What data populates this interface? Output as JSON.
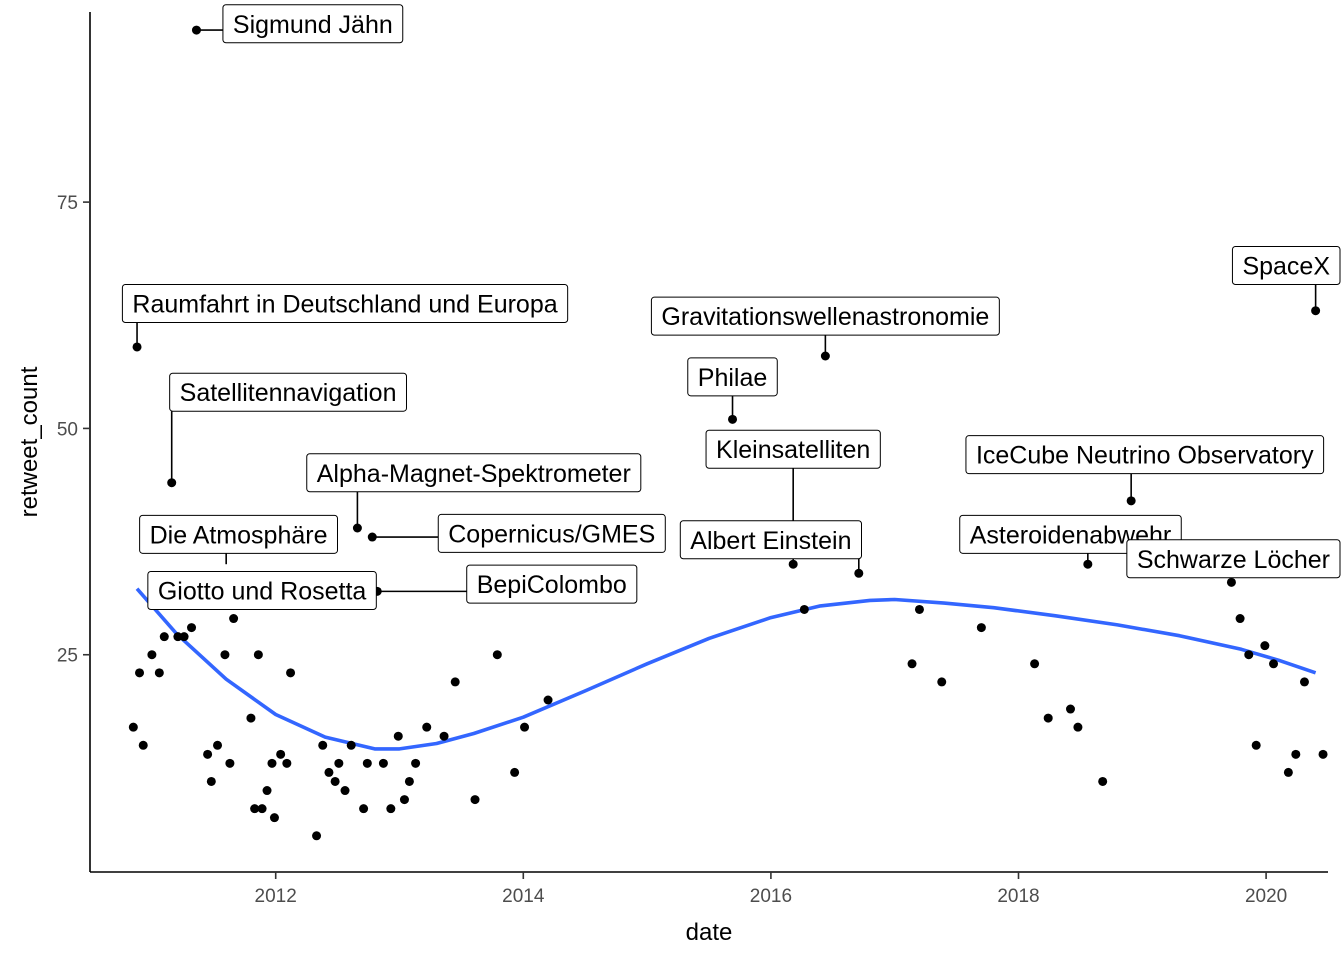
{
  "chart_data": {
    "type": "scatter",
    "xlabel": "date",
    "ylabel": "retweet_count",
    "xlim": [
      2010.5,
      2020.5
    ],
    "ylim": [
      1,
      96
    ],
    "x_ticks": [
      2012,
      2014,
      2016,
      2018,
      2020
    ],
    "y_ticks": [
      25,
      50,
      75
    ],
    "grid": false,
    "point_color": "#000000",
    "smooth_color": "#3366ff",
    "points": [
      {
        "x": 2010.85,
        "y": 17
      },
      {
        "x": 2010.88,
        "y": 59
      },
      {
        "x": 2010.9,
        "y": 23
      },
      {
        "x": 2010.93,
        "y": 15
      },
      {
        "x": 2011.0,
        "y": 25
      },
      {
        "x": 2011.06,
        "y": 23
      },
      {
        "x": 2011.1,
        "y": 27
      },
      {
        "x": 2011.16,
        "y": 44
      },
      {
        "x": 2011.21,
        "y": 27
      },
      {
        "x": 2011.26,
        "y": 27
      },
      {
        "x": 2011.32,
        "y": 28
      },
      {
        "x": 2011.36,
        "y": 94
      },
      {
        "x": 2011.39,
        "y": 32
      },
      {
        "x": 2011.45,
        "y": 14
      },
      {
        "x": 2011.48,
        "y": 11
      },
      {
        "x": 2011.53,
        "y": 15
      },
      {
        "x": 2011.59,
        "y": 25
      },
      {
        "x": 2011.63,
        "y": 13
      },
      {
        "x": 2011.66,
        "y": 29
      },
      {
        "x": 2011.71,
        "y": 31
      },
      {
        "x": 2011.8,
        "y": 18
      },
      {
        "x": 2011.83,
        "y": 8
      },
      {
        "x": 2011.86,
        "y": 25
      },
      {
        "x": 2011.89,
        "y": 8
      },
      {
        "x": 2011.93,
        "y": 10
      },
      {
        "x": 2011.97,
        "y": 13
      },
      {
        "x": 2011.99,
        "y": 7
      },
      {
        "x": 2012.04,
        "y": 14
      },
      {
        "x": 2012.09,
        "y": 13
      },
      {
        "x": 2012.12,
        "y": 23
      },
      {
        "x": 2012.33,
        "y": 5
      },
      {
        "x": 2012.38,
        "y": 15
      },
      {
        "x": 2012.43,
        "y": 12
      },
      {
        "x": 2012.48,
        "y": 11
      },
      {
        "x": 2012.51,
        "y": 13
      },
      {
        "x": 2012.56,
        "y": 10
      },
      {
        "x": 2012.61,
        "y": 15
      },
      {
        "x": 2012.66,
        "y": 39
      },
      {
        "x": 2012.71,
        "y": 8
      },
      {
        "x": 2012.74,
        "y": 13
      },
      {
        "x": 2012.78,
        "y": 38
      },
      {
        "x": 2012.82,
        "y": 32
      },
      {
        "x": 2012.87,
        "y": 13
      },
      {
        "x": 2012.93,
        "y": 8
      },
      {
        "x": 2012.99,
        "y": 16
      },
      {
        "x": 2013.04,
        "y": 9
      },
      {
        "x": 2013.08,
        "y": 11
      },
      {
        "x": 2013.13,
        "y": 13
      },
      {
        "x": 2013.22,
        "y": 17
      },
      {
        "x": 2013.36,
        "y": 16
      },
      {
        "x": 2013.45,
        "y": 22
      },
      {
        "x": 2013.61,
        "y": 9
      },
      {
        "x": 2013.79,
        "y": 25
      },
      {
        "x": 2013.93,
        "y": 12
      },
      {
        "x": 2014.01,
        "y": 17
      },
      {
        "x": 2014.2,
        "y": 20
      },
      {
        "x": 2015.69,
        "y": 51
      },
      {
        "x": 2016.18,
        "y": 35
      },
      {
        "x": 2016.27,
        "y": 30
      },
      {
        "x": 2016.44,
        "y": 58
      },
      {
        "x": 2016.71,
        "y": 34
      },
      {
        "x": 2017.14,
        "y": 24
      },
      {
        "x": 2017.2,
        "y": 30
      },
      {
        "x": 2017.38,
        "y": 22
      },
      {
        "x": 2017.7,
        "y": 28
      },
      {
        "x": 2018.13,
        "y": 24
      },
      {
        "x": 2018.24,
        "y": 18
      },
      {
        "x": 2018.42,
        "y": 19
      },
      {
        "x": 2018.48,
        "y": 17
      },
      {
        "x": 2018.56,
        "y": 35
      },
      {
        "x": 2018.68,
        "y": 11
      },
      {
        "x": 2018.91,
        "y": 42
      },
      {
        "x": 2019.72,
        "y": 33
      },
      {
        "x": 2019.79,
        "y": 29
      },
      {
        "x": 2019.86,
        "y": 25
      },
      {
        "x": 2019.92,
        "y": 15
      },
      {
        "x": 2019.99,
        "y": 26
      },
      {
        "x": 2020.06,
        "y": 24
      },
      {
        "x": 2020.18,
        "y": 12
      },
      {
        "x": 2020.24,
        "y": 14
      },
      {
        "x": 2020.31,
        "y": 22
      },
      {
        "x": 2020.4,
        "y": 63
      },
      {
        "x": 2020.46,
        "y": 14
      }
    ],
    "smooth": [
      {
        "x": 2010.88,
        "y": 32.3
      },
      {
        "x": 2011.2,
        "y": 27.3
      },
      {
        "x": 2011.6,
        "y": 22.3
      },
      {
        "x": 2012.0,
        "y": 18.4
      },
      {
        "x": 2012.4,
        "y": 15.9
      },
      {
        "x": 2012.8,
        "y": 14.6
      },
      {
        "x": 2013.0,
        "y": 14.6
      },
      {
        "x": 2013.3,
        "y": 15.2
      },
      {
        "x": 2013.6,
        "y": 16.3
      },
      {
        "x": 2014.0,
        "y": 18.1
      },
      {
        "x": 2014.5,
        "y": 21.0
      },
      {
        "x": 2015.0,
        "y": 24.0
      },
      {
        "x": 2015.5,
        "y": 26.8
      },
      {
        "x": 2016.0,
        "y": 29.1
      },
      {
        "x": 2016.4,
        "y": 30.4
      },
      {
        "x": 2016.8,
        "y": 31.0
      },
      {
        "x": 2017.0,
        "y": 31.1
      },
      {
        "x": 2017.4,
        "y": 30.7
      },
      {
        "x": 2017.8,
        "y": 30.2
      },
      {
        "x": 2018.3,
        "y": 29.3
      },
      {
        "x": 2018.8,
        "y": 28.3
      },
      {
        "x": 2019.3,
        "y": 27.1
      },
      {
        "x": 2019.8,
        "y": 25.6
      },
      {
        "x": 2020.1,
        "y": 24.4
      },
      {
        "x": 2020.4,
        "y": 23.0
      }
    ],
    "annotations": [
      {
        "text": "Sigmund Jähn",
        "x": 2011.36,
        "y": 94,
        "lx": 2012.3,
        "ly": 94.7
      },
      {
        "text": "Raumfahrt in Deutschland und Europa",
        "x": 2010.88,
        "y": 59,
        "lx": 2012.56,
        "ly": 63.8
      },
      {
        "text": "Satellitennavigation",
        "x": 2011.16,
        "y": 44,
        "lx": 2012.1,
        "ly": 54.0
      },
      {
        "text": "Alpha-Magnet-Spektrometer",
        "x": 2012.66,
        "y": 39,
        "lx": 2013.6,
        "ly": 45.1
      },
      {
        "text": "Die Atmosphäre",
        "x": 2011.6,
        "y": 35,
        "lx": 2011.7,
        "ly": 38.3
      },
      {
        "text": "Copernicus/GMES",
        "x": 2012.78,
        "y": 38,
        "lx": 2014.23,
        "ly": 38.4
      },
      {
        "text": "Giotto und Rosetta",
        "x": 2012.82,
        "y": 32,
        "lx": 2011.89,
        "ly": 32.1
      },
      {
        "text": "BepiColombo",
        "x": 2012.82,
        "y": 32,
        "lx": 2014.23,
        "ly": 32.8
      },
      {
        "text": "Gravitationswellenastronomie",
        "x": 2016.44,
        "y": 58,
        "lx": 2016.44,
        "ly": 62.4
      },
      {
        "text": "Philae",
        "x": 2015.69,
        "y": 51,
        "lx": 2015.69,
        "ly": 55.7
      },
      {
        "text": "Kleinsatelliten",
        "x": 2016.18,
        "y": 35,
        "lx": 2016.18,
        "ly": 47.7
      },
      {
        "text": "Albert Einstein",
        "x": 2016.71,
        "y": 34,
        "lx": 2016.0,
        "ly": 37.7
      },
      {
        "text": "IceCube Neutrino Observatory",
        "x": 2018.91,
        "y": 42,
        "lx": 2019.02,
        "ly": 47.1
      },
      {
        "text": "Asteroidenabwehr",
        "x": 2018.56,
        "y": 35,
        "lx": 2018.42,
        "ly": 38.3
      },
      {
        "text": "Schwarze Löcher",
        "x": 2019.72,
        "y": 33,
        "lx": 2019.79,
        "ly": 35.6
      },
      {
        "text": "SpaceX",
        "x": 2020.4,
        "y": 63,
        "lx": 2020.4,
        "ly": 68.0
      }
    ]
  }
}
